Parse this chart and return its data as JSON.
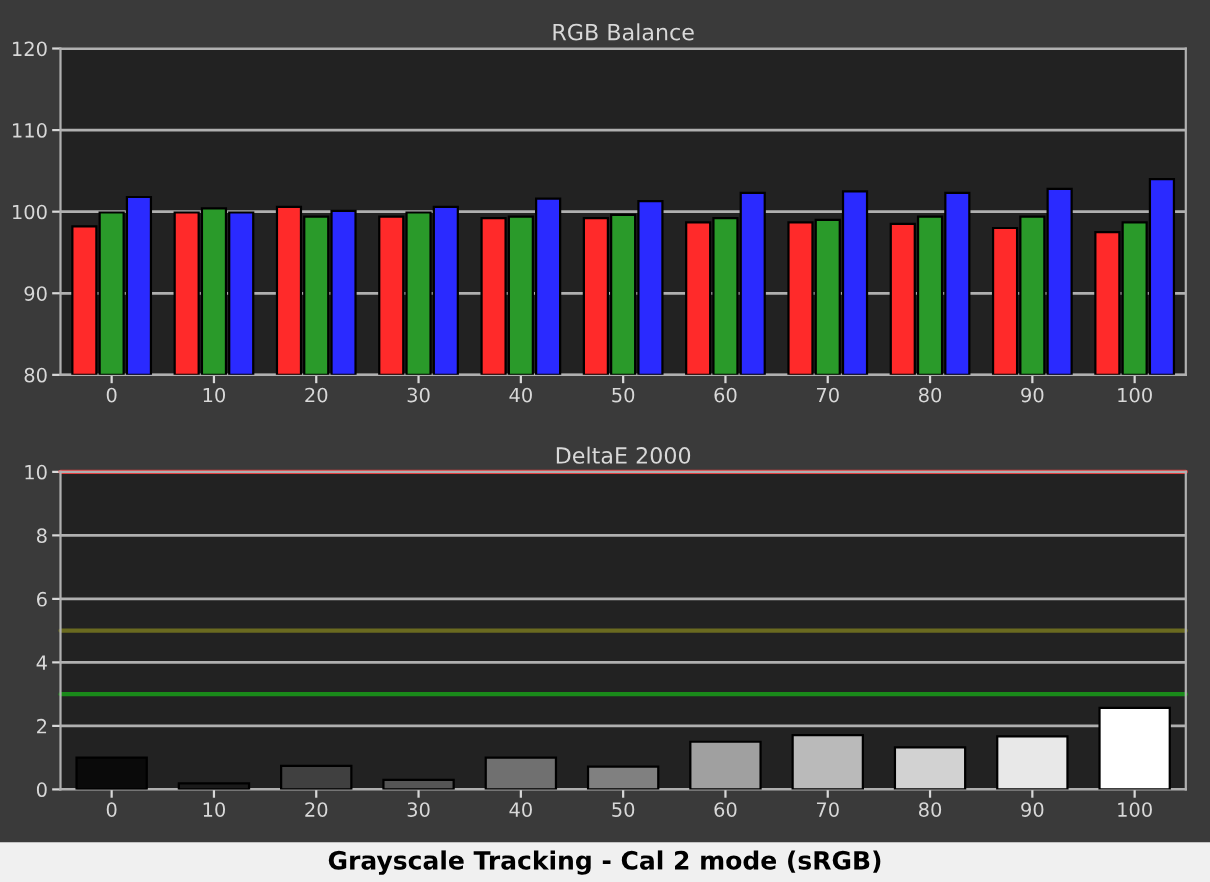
{
  "chart_data": [
    {
      "type": "bar",
      "title": "RGB Balance",
      "categories": [
        "0",
        "10",
        "20",
        "30",
        "40",
        "50",
        "60",
        "70",
        "80",
        "90",
        "100"
      ],
      "series": [
        {
          "color": "#ff2a2a",
          "values": [
            98.2,
            99.9,
            100.6,
            99.4,
            99.2,
            99.2,
            98.7,
            98.7,
            98.5,
            98.0,
            97.5
          ]
        },
        {
          "color": "#2a9a2a",
          "values": [
            99.9,
            100.4,
            99.4,
            99.9,
            99.4,
            99.6,
            99.2,
            99.0,
            99.4,
            99.4,
            98.7
          ]
        },
        {
          "color": "#2a2aff",
          "values": [
            101.8,
            99.9,
            100.1,
            100.6,
            101.6,
            101.3,
            102.3,
            102.5,
            102.3,
            102.8,
            104.0
          ]
        }
      ],
      "ylim": [
        80,
        120
      ],
      "yticks": [
        80,
        90,
        100,
        110,
        120
      ],
      "grid": "y",
      "legend": false
    },
    {
      "type": "bar",
      "title": "DeltaE 2000",
      "categories": [
        "0",
        "10",
        "20",
        "30",
        "40",
        "50",
        "60",
        "70",
        "80",
        "90",
        "100"
      ],
      "values": [
        1.0,
        0.19,
        0.74,
        0.3,
        1.0,
        0.72,
        1.5,
        1.71,
        1.32,
        1.67,
        2.57
      ],
      "colors": [
        "#0a0a0a",
        "#1a1a1a",
        "#404040",
        "#555555",
        "#707070",
        "#808080",
        "#a0a0a0",
        "#bababa",
        "#d2d2d2",
        "#e8e8e8",
        "#ffffff"
      ],
      "ylim": [
        0,
        10
      ],
      "yticks": [
        0,
        2,
        4,
        6,
        8,
        10
      ],
      "grid": "y",
      "legend": false,
      "ref_lines": [
        {
          "axis": "y",
          "value": 10,
          "color": "#e04040"
        },
        {
          "axis": "y",
          "value": 5,
          "color": "#6a6a20"
        },
        {
          "axis": "y",
          "value": 3,
          "color": "#1a8a1a"
        }
      ],
      "annotations": [
        "Grayscale Tracking - Cal 2 mode (sRGB)"
      ]
    }
  ]
}
